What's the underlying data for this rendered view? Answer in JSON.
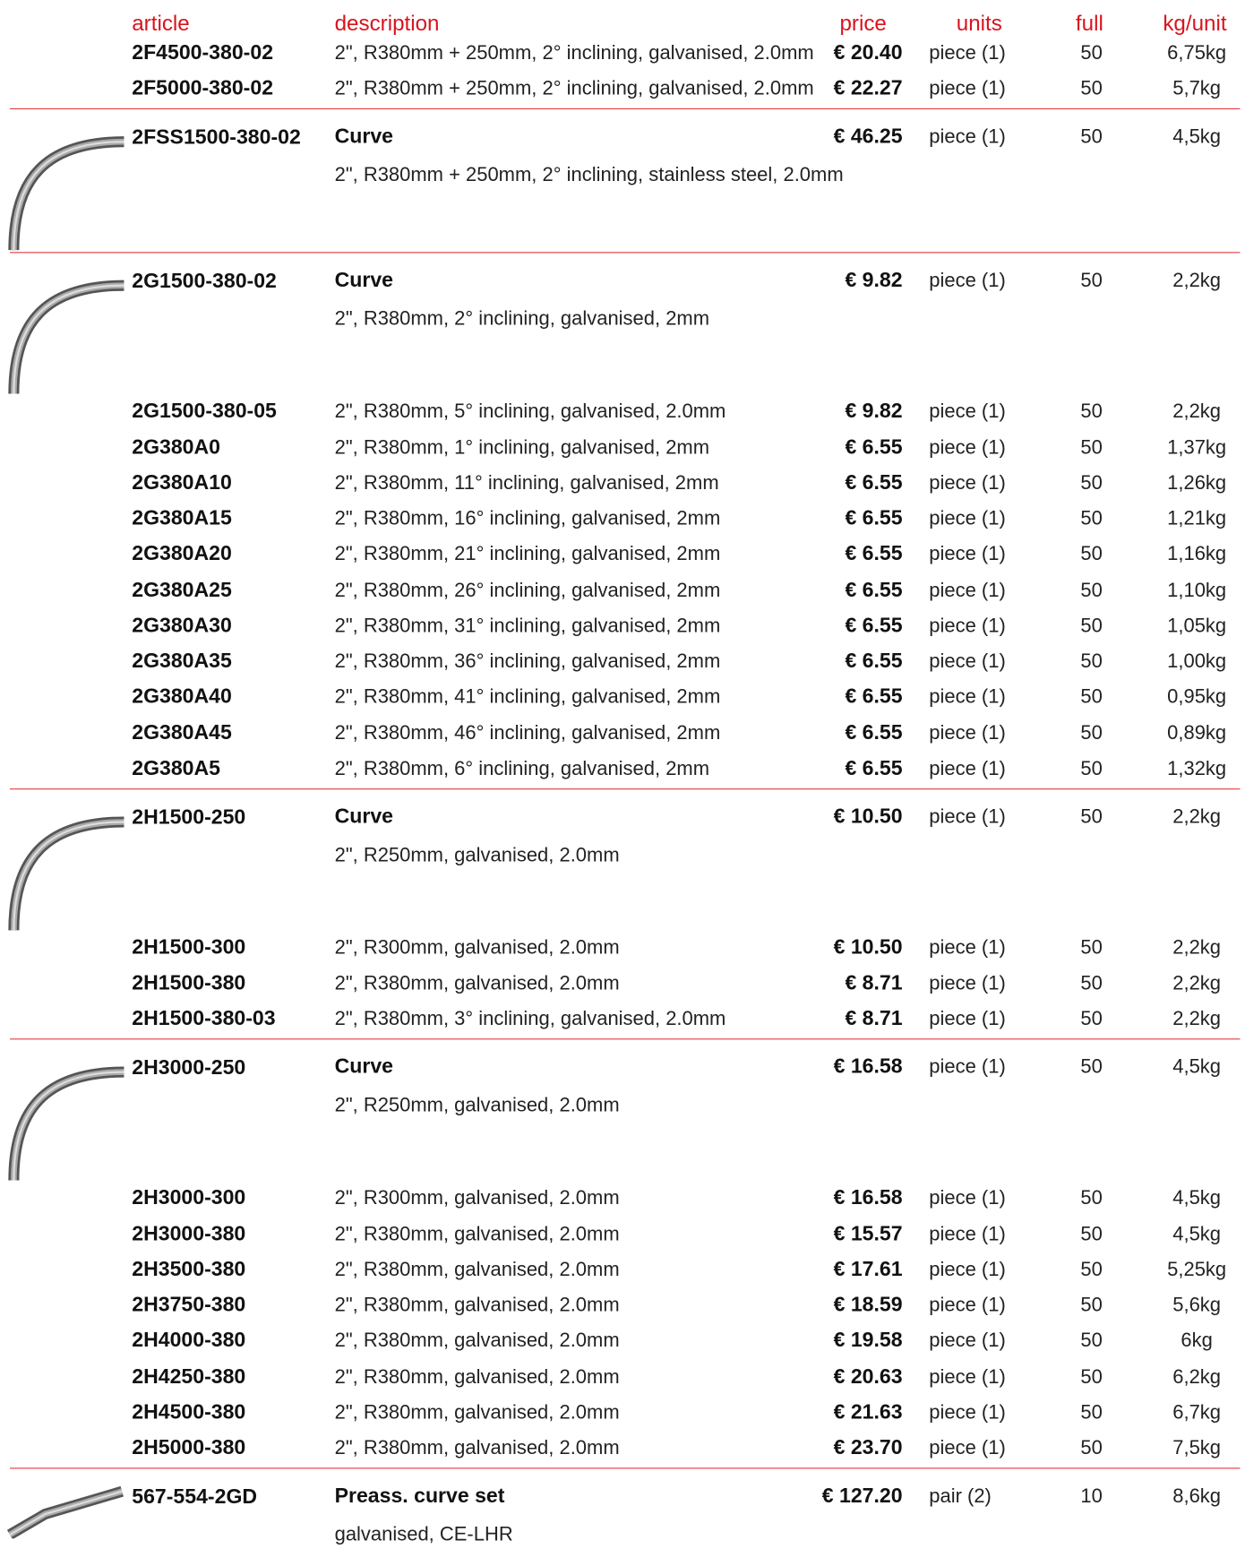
{
  "header": {
    "article": "article",
    "description": "description",
    "price": "price",
    "units": "units",
    "full": "full",
    "weight": "kg/unit"
  },
  "groups": [
    {
      "rows": [
        {
          "article": "2F4500-380-02",
          "description": "2\", R380mm + 250mm, 2° inclining, galvanised, 2.0mm",
          "price": "€ 20.40",
          "units": "piece (1)",
          "full": "50",
          "weight": "6,75kg"
        },
        {
          "article": "2F5000-380-02",
          "description": "2\", R380mm + 250mm, 2° inclining, galvanised, 2.0mm",
          "price": "€ 22.27",
          "units": "piece (1)",
          "full": "50",
          "weight": "5,7kg"
        }
      ]
    },
    {
      "item": {
        "article": "2FSS1500-380-02",
        "title": "Curve",
        "description": "2\", R380mm + 250mm, 2° inclining, stainless steel, 2.0mm",
        "price": "€ 46.25",
        "units": "piece (1)",
        "full": "50",
        "weight": "4,5kg"
      },
      "rows": []
    },
    {
      "item": {
        "article": "2G1500-380-02",
        "title": "Curve",
        "description": "2\", R380mm, 2° inclining, galvanised, 2mm",
        "price": "€ 9.82",
        "units": "piece (1)",
        "full": "50",
        "weight": "2,2kg"
      },
      "rows": [
        {
          "article": "2G1500-380-05",
          "description": "2\", R380mm, 5° inclining, galvanised, 2.0mm",
          "price": "€ 9.82",
          "units": "piece (1)",
          "full": "50",
          "weight": "2,2kg"
        },
        {
          "article": "2G380A0",
          "description": "2\", R380mm, 1° inclining, galvanised, 2mm",
          "price": "€ 6.55",
          "units": "piece (1)",
          "full": "50",
          "weight": "1,37kg"
        },
        {
          "article": "2G380A10",
          "description": "2\", R380mm, 11° inclining, galvanised, 2mm",
          "price": "€ 6.55",
          "units": "piece (1)",
          "full": "50",
          "weight": "1,26kg"
        },
        {
          "article": "2G380A15",
          "description": "2\", R380mm, 16° inclining, galvanised, 2mm",
          "price": "€ 6.55",
          "units": "piece (1)",
          "full": "50",
          "weight": "1,21kg"
        },
        {
          "article": "2G380A20",
          "description": "2\", R380mm, 21° inclining, galvanised, 2mm",
          "price": "€ 6.55",
          "units": "piece (1)",
          "full": "50",
          "weight": "1,16kg"
        },
        {
          "article": "2G380A25",
          "description": "2\", R380mm, 26° inclining, galvanised, 2mm",
          "price": "€ 6.55",
          "units": "piece (1)",
          "full": "50",
          "weight": "1,10kg"
        },
        {
          "article": "2G380A30",
          "description": "2\", R380mm, 31° inclining, galvanised, 2mm",
          "price": "€ 6.55",
          "units": "piece (1)",
          "full": "50",
          "weight": "1,05kg"
        },
        {
          "article": "2G380A35",
          "description": "2\", R380mm, 36° inclining, galvanised, 2mm",
          "price": "€ 6.55",
          "units": "piece (1)",
          "full": "50",
          "weight": "1,00kg"
        },
        {
          "article": "2G380A40",
          "description": "2\", R380mm, 41° inclining, galvanised, 2mm",
          "price": "€ 6.55",
          "units": "piece (1)",
          "full": "50",
          "weight": "0,95kg"
        },
        {
          "article": "2G380A45",
          "description": "2\", R380mm, 46° inclining, galvanised, 2mm",
          "price": "€ 6.55",
          "units": "piece (1)",
          "full": "50",
          "weight": "0,89kg"
        },
        {
          "article": "2G380A5",
          "description": "2\", R380mm, 6° inclining, galvanised, 2mm",
          "price": "€ 6.55",
          "units": "piece (1)",
          "full": "50",
          "weight": "1,32kg"
        }
      ]
    },
    {
      "item": {
        "article": "2H1500-250",
        "title": "Curve",
        "description": "2\", R250mm, galvanised, 2.0mm",
        "price": "€ 10.50",
        "units": "piece (1)",
        "full": "50",
        "weight": "2,2kg"
      },
      "rows": [
        {
          "article": "2H1500-300",
          "description": "2\", R300mm, galvanised, 2.0mm",
          "price": "€ 10.50",
          "units": "piece (1)",
          "full": "50",
          "weight": "2,2kg"
        },
        {
          "article": "2H1500-380",
          "description": "2\", R380mm, galvanised, 2.0mm",
          "price": "€ 8.71",
          "units": "piece (1)",
          "full": "50",
          "weight": "2,2kg"
        },
        {
          "article": "2H1500-380-03",
          "description": "2\", R380mm, 3° inclining, galvanised, 2.0mm",
          "price": "€ 8.71",
          "units": "piece (1)",
          "full": "50",
          "weight": "2,2kg"
        }
      ]
    },
    {
      "item": {
        "article": "2H3000-250",
        "title": "Curve",
        "description": "2\", R250mm, galvanised, 2.0mm",
        "price": "€ 16.58",
        "units": "piece (1)",
        "full": "50",
        "weight": "4,5kg"
      },
      "rows": [
        {
          "article": "2H3000-300",
          "description": "2\", R300mm, galvanised, 2.0mm",
          "price": "€ 16.58",
          "units": "piece (1)",
          "full": "50",
          "weight": "4,5kg"
        },
        {
          "article": "2H3000-380",
          "description": "2\", R380mm, galvanised, 2.0mm",
          "price": "€ 15.57",
          "units": "piece (1)",
          "full": "50",
          "weight": "4,5kg"
        },
        {
          "article": "2H3500-380",
          "description": "2\", R380mm, galvanised, 2.0mm",
          "price": "€ 17.61",
          "units": "piece (1)",
          "full": "50",
          "weight": "5,25kg"
        },
        {
          "article": "2H3750-380",
          "description": "2\", R380mm, galvanised, 2.0mm",
          "price": "€ 18.59",
          "units": "piece (1)",
          "full": "50",
          "weight": "5,6kg"
        },
        {
          "article": "2H4000-380",
          "description": "2\", R380mm, galvanised, 2.0mm",
          "price": "€ 19.58",
          "units": "piece (1)",
          "full": "50",
          "weight": "6kg"
        },
        {
          "article": "2H4250-380",
          "description": "2\", R380mm, galvanised, 2.0mm",
          "price": "€ 20.63",
          "units": "piece (1)",
          "full": "50",
          "weight": "6,2kg"
        },
        {
          "article": "2H4500-380",
          "description": "2\", R380mm, galvanised, 2.0mm",
          "price": "€ 21.63",
          "units": "piece (1)",
          "full": "50",
          "weight": "6,7kg"
        },
        {
          "article": "2H5000-380",
          "description": "2\", R380mm, galvanised, 2.0mm",
          "price": "€ 23.70",
          "units": "piece (1)",
          "full": "50",
          "weight": "7,5kg"
        }
      ]
    },
    {
      "item": {
        "article": "567-554-2GD",
        "title": "Preass. curve set",
        "description": "galvanised, CE-LHR",
        "price": "€ 127.20",
        "units": "pair (2)",
        "full": "10",
        "weight": "8,6kg"
      },
      "rows": []
    }
  ]
}
